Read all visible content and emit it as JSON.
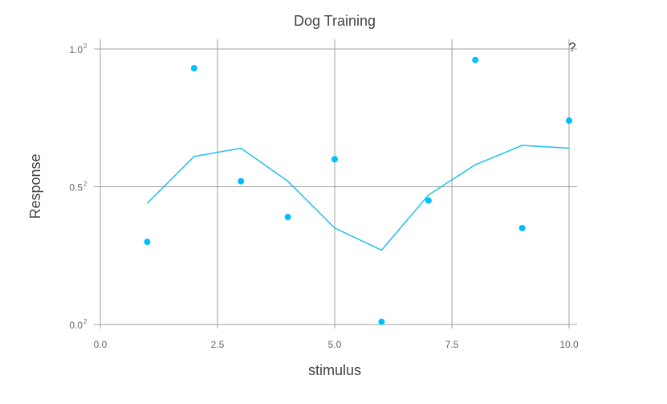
{
  "chart_data": {
    "type": "scatter",
    "title": "Dog Training",
    "xlabel": "stimulus",
    "ylabel": "Response",
    "xlim": [
      0,
      10
    ],
    "ylim": [
      0,
      1
    ],
    "grid": true,
    "legend": "none",
    "x_ticks": [
      {
        "value": 0,
        "label": "0.0"
      },
      {
        "value": 2.5,
        "label": "2.5"
      },
      {
        "value": 5,
        "label": "5.0"
      },
      {
        "value": 7.5,
        "label": "7.5"
      },
      {
        "value": 10,
        "label": "10.0"
      }
    ],
    "y_ticks": [
      {
        "value": 0,
        "base": "0.0",
        "exp": "2"
      },
      {
        "value": 0.5,
        "base": "0.5",
        "exp": "2"
      },
      {
        "value": 1,
        "base": "1.0",
        "exp": "2"
      }
    ],
    "corner_note": "?",
    "series": [
      {
        "kind": "scatter",
        "color": "#00bfff",
        "x": [
          1,
          2,
          3,
          4,
          5,
          6,
          7,
          8,
          9,
          10
        ],
        "y": [
          0.3,
          0.93,
          0.52,
          0.39,
          0.6,
          0.01,
          0.45,
          0.96,
          0.35,
          0.74
        ]
      },
      {
        "kind": "line",
        "color": "#1ec0f0",
        "x": [
          1,
          2,
          3,
          4,
          5,
          6,
          7,
          8,
          9,
          10
        ],
        "y": [
          0.44,
          0.61,
          0.64,
          0.52,
          0.35,
          0.27,
          0.47,
          0.58,
          0.65,
          0.64
        ]
      }
    ]
  }
}
